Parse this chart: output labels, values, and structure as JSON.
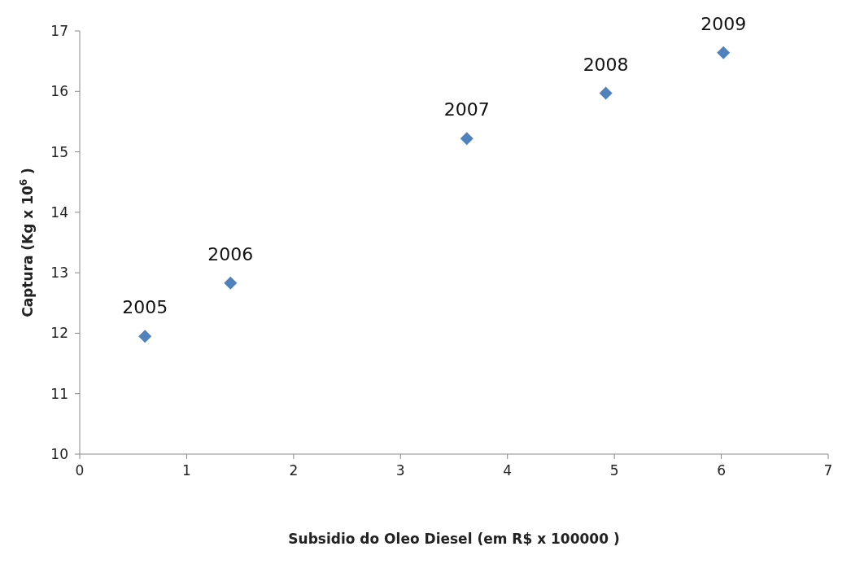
{
  "chart_data": {
    "type": "scatter",
    "xlabel": "Subsidio  do Oleo Diesel (em R$ x 100000 )",
    "ylabel": "Captura (Kg  x 10$^{6}$ )",
    "x": [
      0.61,
      1.41,
      3.62,
      4.92,
      6.02
    ],
    "series": [
      {
        "color": "#4f81bd",
        "values": [
          11.95,
          12.83,
          15.22,
          15.97,
          16.64
        ]
      }
    ],
    "xlim": [
      0,
      7
    ],
    "xticks": [
      0,
      1,
      2,
      3,
      4,
      5,
      6,
      7
    ],
    "ylim": [
      10,
      17
    ],
    "yticks": [
      10,
      11,
      12,
      13,
      14,
      15,
      16,
      17
    ],
    "marker": "diamond",
    "grid": false,
    "legend": false,
    "annotations": [
      {
        "text": "2005",
        "x": 0.61,
        "y": 11.95
      },
      {
        "text": "2006",
        "x": 1.41,
        "y": 12.83
      },
      {
        "text": "2007",
        "x": 3.62,
        "y": 15.22
      },
      {
        "text": "2008",
        "x": 4.92,
        "y": 15.97
      },
      {
        "text": "2009",
        "x": 6.02,
        "y": 16.64
      }
    ]
  }
}
